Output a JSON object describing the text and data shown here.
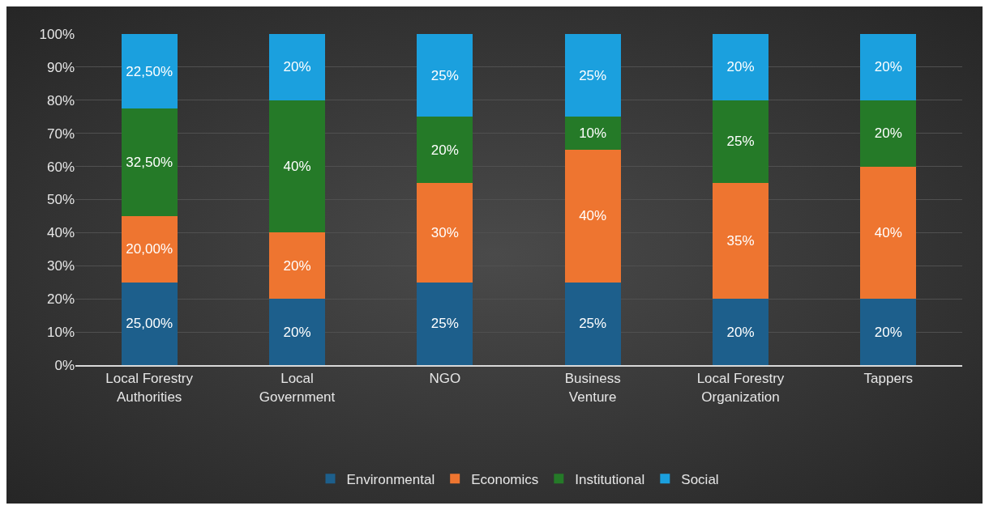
{
  "chart_data": {
    "type": "bar",
    "stacked": true,
    "categories": [
      "Local Forestry\nAuthorities",
      "Local\nGovernment",
      "NGO",
      "Business\nVenture",
      "Local Forestry\nOrganization",
      "Tappers"
    ],
    "series": [
      {
        "name": "Environmental",
        "color": "#1d5f8c",
        "values": [
          25,
          20,
          25,
          25,
          20,
          20
        ],
        "value_labels": [
          "25,00%",
          "20%",
          "25%",
          "25%",
          "20%",
          "20%"
        ]
      },
      {
        "name": "Economics",
        "color": "#ee7530",
        "values": [
          20,
          20,
          30,
          40,
          35,
          40
        ],
        "value_labels": [
          "20,00%",
          "20%",
          "30%",
          "40%",
          "35%",
          "40%"
        ]
      },
      {
        "name": "Institutional",
        "color": "#257a28",
        "values": [
          32.5,
          40,
          20,
          10,
          25,
          20
        ],
        "value_labels": [
          "32,50%",
          "40%",
          "20%",
          "10%",
          "25%",
          "20%"
        ]
      },
      {
        "name": "Social",
        "color": "#1ba0de",
        "values": [
          22.5,
          20,
          25,
          25,
          20,
          20
        ],
        "value_labels": [
          "22,50%",
          "20%",
          "25%",
          "25%",
          "20%",
          "20%"
        ]
      }
    ],
    "ylim": [
      0,
      100
    ],
    "yticks": [
      {
        "value": 0,
        "label": "0%"
      },
      {
        "value": 10,
        "label": "10%"
      },
      {
        "value": 20,
        "label": "20%"
      },
      {
        "value": 30,
        "label": "30%"
      },
      {
        "value": 40,
        "label": "40%"
      },
      {
        "value": 50,
        "label": "50%"
      },
      {
        "value": 60,
        "label": "60%"
      },
      {
        "value": 70,
        "label": "70%"
      },
      {
        "value": 80,
        "label": "80%"
      },
      {
        "value": 90,
        "label": "90%"
      },
      {
        "value": 100,
        "label": "100%"
      }
    ],
    "grid": "y",
    "legend": "bottom"
  }
}
